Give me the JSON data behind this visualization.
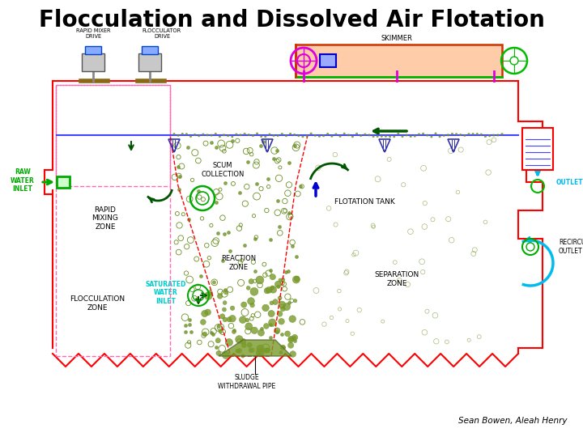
{
  "title": "Flocculation and Dissolved Air Flotation",
  "title_fontsize": 20,
  "title_fontweight": "bold",
  "author": "Sean Bowen, Aleah Henry",
  "bg_color": "#ffffff",
  "tank_color": "#ff0000",
  "water_line_color": "#4444ff",
  "pink_dash": "#ff69b4",
  "skimmer_fill": "#ffeecc",
  "skimmer_outline": "#ff4400",
  "green_outline": "#00bb00",
  "magenta": "#dd00dd",
  "cyan": "#00bbee",
  "dark_green": "#005500",
  "olive": "#6b8e23",
  "blue": "#0000cc",
  "labels": {
    "rapid_mixer_drive": "RAPID MIXER\nDRIVE",
    "flocculator_drive": "FLOCCULATOR\nDRIVE",
    "skimmer": "SKIMMER",
    "raw_water_inlet": "RAW\nWATER\nINLET",
    "rapid_mixing_zone": "RAPID\nMIXING\nZONE",
    "scum_collection": "SCUM\nCOLLECTION",
    "flotation_tank": "FLOTATION TANK",
    "flocculation_zone": "FLOCCULATION\nZONE",
    "reaction_zone": "REACTION\nZONE",
    "separation_zone": "SEPARATION\nZONE",
    "outlet": "OUTLET",
    "recirculation_outlet": "RECIRCULATION\nOUTLET",
    "saturated_water_inlet": "SATURATED\nWATER\nINLET",
    "sludge_withdrawal_pipe": "SLUDGE\nWITHDRAWAL PIPE"
  }
}
